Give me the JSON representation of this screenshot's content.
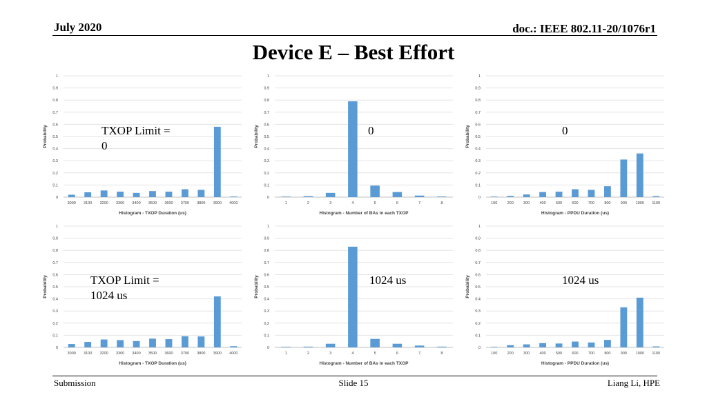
{
  "header": {
    "date": "July 2020",
    "doc": "doc.: IEEE 802.11-20/1076r1"
  },
  "title": "Device E – Best Effort",
  "footer": {
    "left": "Submission",
    "center": "Slide 15",
    "right": "Liang Li, HPE"
  },
  "annotations": {
    "row1_col1_line1": "TXOP Limit =",
    "row1_col1_line2": "0",
    "row1_col2": "0",
    "row1_col3": "0",
    "row2_col1_line1": "TXOP Limit =",
    "row2_col1_line2": "1024 us",
    "row2_col2": "1024 us",
    "row2_col3": "1024 us"
  },
  "colors": {
    "bar": "#5b9bd5",
    "grid": "#e3e3e3",
    "axis_text": "#404040"
  },
  "chart_data": [
    {
      "type": "bar",
      "title": "",
      "ylabel": "Probability",
      "xlabel": "Histogram - TXOP Duration (us)",
      "ylim": [
        0,
        1
      ],
      "yticks": [
        "0",
        "0.1",
        "0.2",
        "0.3",
        "0.4",
        "0.5",
        "0.6",
        "0.7",
        "0.8",
        "0.9",
        "1"
      ],
      "categories": [
        "3000",
        "3100",
        "3200",
        "3300",
        "3400",
        "3500",
        "3600",
        "3700",
        "3800",
        "3900",
        "4000"
      ],
      "values": [
        0.02,
        0.04,
        0.055,
        0.045,
        0.035,
        0.05,
        0.045,
        0.065,
        0.06,
        0.58,
        0.005
      ]
    },
    {
      "type": "bar",
      "title": "",
      "ylabel": "Probability",
      "xlabel": "Histogram - Number of BAs in each TXOP",
      "ylim": [
        0,
        1
      ],
      "yticks": [
        "0",
        "0.1",
        "0.2",
        "0.3",
        "0.4",
        "0.5",
        "0.6",
        "0.7",
        "0.8",
        "0.9",
        "1"
      ],
      "categories": [
        "1",
        "2",
        "3",
        "4",
        "5",
        "6",
        "7",
        "8"
      ],
      "values": [
        0.003,
        0.008,
        0.035,
        0.79,
        0.095,
        0.042,
        0.013,
        0.005
      ]
    },
    {
      "type": "bar",
      "title": "",
      "ylabel": "Probability",
      "xlabel": "Histogram - PPDU Duration (us)",
      "ylim": [
        0,
        1
      ],
      "yticks": [
        "0",
        "0.1",
        "0.2",
        "0.3",
        "0.4",
        "0.5",
        "0.6",
        "0.7",
        "0.8",
        "0.9",
        "1"
      ],
      "categories": [
        "100",
        "200",
        "300",
        "400",
        "500",
        "600",
        "700",
        "800",
        "900",
        "1000",
        "1100"
      ],
      "values": [
        0.003,
        0.01,
        0.022,
        0.042,
        0.045,
        0.065,
        0.06,
        0.09,
        0.31,
        0.36,
        0.008
      ]
    },
    {
      "type": "bar",
      "title": "",
      "ylabel": "Probability",
      "xlabel": "Histogram - TXOP Duration (us)",
      "ylim": [
        0,
        1
      ],
      "yticks": [
        "0",
        "0.1",
        "0.2",
        "0.3",
        "0.4",
        "0.5",
        "0.6",
        "0.7",
        "0.8",
        "0.9",
        "1"
      ],
      "categories": [
        "3000",
        "3100",
        "3200",
        "3300",
        "3400",
        "3500",
        "3600",
        "3700",
        "3800",
        "3900",
        "4000"
      ],
      "values": [
        0.028,
        0.045,
        0.065,
        0.06,
        0.052,
        0.072,
        0.068,
        0.092,
        0.09,
        0.42,
        0.01
      ]
    },
    {
      "type": "bar",
      "title": "",
      "ylabel": "Probability",
      "xlabel": "Histogram - Number of BAs in each TXOP",
      "ylim": [
        0,
        1
      ],
      "yticks": [
        "0",
        "0.1",
        "0.2",
        "0.3",
        "0.4",
        "0.5",
        "0.6",
        "0.7",
        "0.8",
        "0.9",
        "1"
      ],
      "categories": [
        "1",
        "2",
        "3",
        "4",
        "5",
        "6",
        "7",
        "8"
      ],
      "values": [
        0.003,
        0.006,
        0.03,
        0.83,
        0.07,
        0.03,
        0.015,
        0.006
      ]
    },
    {
      "type": "bar",
      "title": "",
      "ylabel": "Probability",
      "xlabel": "Histogram - PPDU Duration (us)",
      "ylim": [
        0,
        1
      ],
      "yticks": [
        "0",
        "0.1",
        "0.2",
        "0.3",
        "0.4",
        "0.5",
        "0.6",
        "0.7",
        "0.8",
        "0.9",
        "1"
      ],
      "categories": [
        "100",
        "200",
        "300",
        "400",
        "500",
        "600",
        "700",
        "800",
        "900",
        "1000",
        "1100"
      ],
      "values": [
        0.003,
        0.018,
        0.025,
        0.035,
        0.032,
        0.048,
        0.04,
        0.062,
        0.33,
        0.41,
        0.008
      ]
    }
  ]
}
